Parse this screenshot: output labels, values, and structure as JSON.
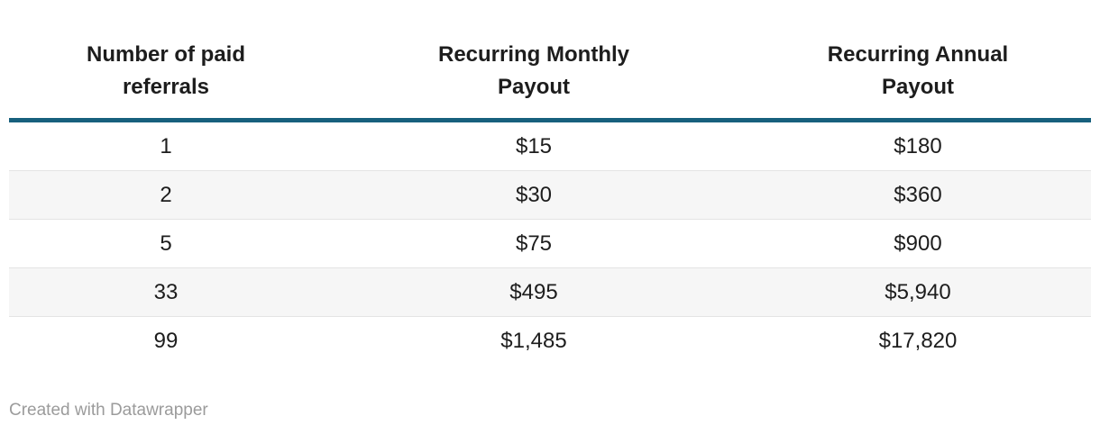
{
  "chart_data": {
    "type": "table",
    "columns": [
      "Number of paid referrals",
      "Recurring Monthly Payout",
      "Recurring Annual Payout"
    ],
    "rows": [
      [
        "1",
        "$15",
        "$180"
      ],
      [
        "2",
        "$30",
        "$360"
      ],
      [
        "5",
        "$75",
        "$900"
      ],
      [
        "33",
        "$495",
        "$5,940"
      ],
      [
        "99",
        "$1,485",
        "$17,820"
      ]
    ],
    "referrals_numeric": [
      1,
      2,
      5,
      33,
      99
    ],
    "monthly_payout_numeric": [
      15,
      30,
      75,
      495,
      1485
    ],
    "annual_payout_numeric": [
      180,
      360,
      900,
      5940,
      17820
    ],
    "layout_hints": {
      "striped_rows": "even",
      "header_rule_color": "#17607d",
      "stripe_color": "#f6f6f6"
    }
  },
  "footer": {
    "attribution": "Created with Datawrapper"
  },
  "colors": {
    "header_rule": "#17607d",
    "stripe": "#f6f6f6",
    "row_border": "#e4e4e4",
    "text": "#1d1d1d",
    "footer_text": "#9b9b9b",
    "background": "#ffffff"
  }
}
